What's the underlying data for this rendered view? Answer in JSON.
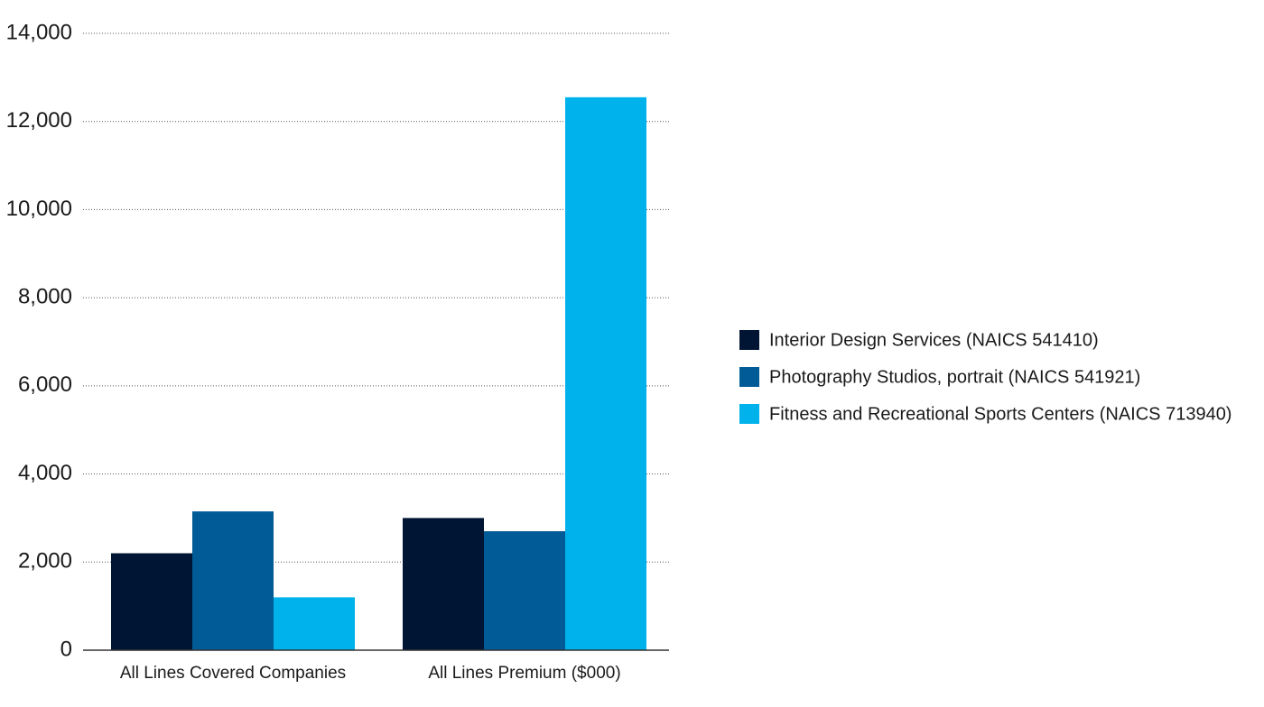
{
  "chart_data": {
    "type": "bar",
    "title": "",
    "xlabel": "",
    "ylabel": "",
    "ylim": [
      0,
      14000
    ],
    "yticks": [
      0,
      2000,
      4000,
      6000,
      8000,
      10000,
      12000,
      14000
    ],
    "ytick_labels": [
      "0",
      "2,000",
      "4,000",
      "6,000",
      "8,000",
      "10,000",
      "12,000",
      "14,000"
    ],
    "grid": true,
    "legend_position": "right",
    "categories": [
      "All Lines Covered Companies",
      "All Lines Premium ($000)"
    ],
    "series": [
      {
        "name": "Interior Design Services (NAICS 541410)",
        "color": "#001433",
        "values": [
          2200,
          3000
        ]
      },
      {
        "name": "Photography Studios, portrait (NAICS 541921)",
        "color": "#005b96",
        "values": [
          3150,
          2700
        ]
      },
      {
        "name": "Fitness and Recreational Sports Centers (NAICS 713940)",
        "color": "#00b2ec",
        "values": [
          1200,
          12550
        ]
      }
    ]
  }
}
